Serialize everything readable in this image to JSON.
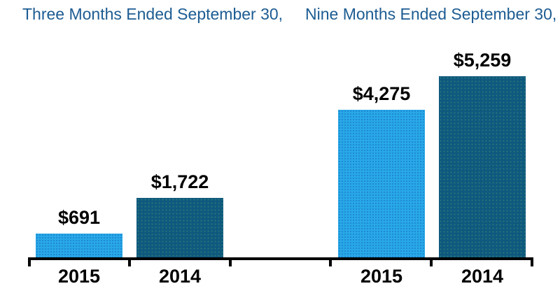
{
  "page": {
    "background": "#ffffff"
  },
  "colors": {
    "title_blue": "#1d5c92",
    "light_blue": "#29a8e6",
    "dark_blue": "#0f587e",
    "axis_black": "#000000",
    "label_black": "#000000"
  },
  "chart_data": {
    "type": "bar",
    "title": "",
    "xlabel": "",
    "ylabel": "",
    "grid": false,
    "legend": false,
    "ylim": [
      0,
      5259
    ],
    "group_titles": [
      "Three Months Ended September 30,",
      "Nine Months Ended September 30,"
    ],
    "groups": [
      {
        "title": "Three Months Ended September 30,",
        "bars": [
          {
            "category": "2015",
            "value": 691,
            "label": "$691",
            "color": "light_blue"
          },
          {
            "category": "2014",
            "value": 1722,
            "label": "$1,722",
            "color": "dark_blue"
          }
        ]
      },
      {
        "title": "Nine Months Ended September 30,",
        "bars": [
          {
            "category": "2015",
            "value": 4275,
            "label": "$4,275",
            "color": "light_blue"
          },
          {
            "category": "2014",
            "value": 5259,
            "label": "$5,259",
            "color": "dark_blue"
          }
        ]
      }
    ]
  }
}
